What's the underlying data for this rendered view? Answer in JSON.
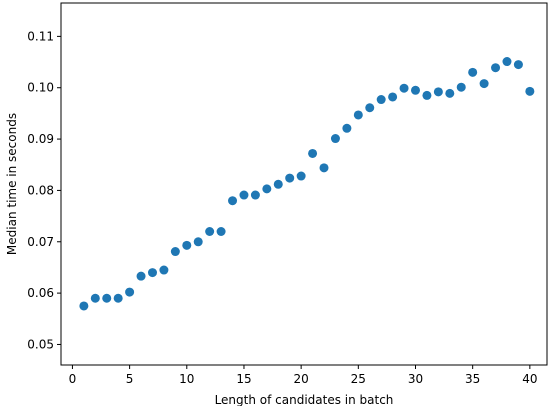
{
  "chart_data": {
    "type": "scatter",
    "title": "",
    "xlabel": "Length of candidates in batch",
    "ylabel": "Median time in seconds",
    "xlim": [
      -1,
      41.5
    ],
    "ylim": [
      0.046,
      0.1165
    ],
    "xticks": [
      0,
      5,
      10,
      15,
      20,
      25,
      30,
      35,
      40
    ],
    "xtick_labels": [
      "0",
      "5",
      "10",
      "15",
      "20",
      "25",
      "30",
      "35",
      "40"
    ],
    "yticks": [
      0.05,
      0.06,
      0.07,
      0.08,
      0.09,
      0.1,
      0.11
    ],
    "ytick_labels": [
      "0.05",
      "0.06",
      "0.07",
      "0.08",
      "0.09",
      "0.10",
      "0.11"
    ],
    "grid": false,
    "marker_color": "#1f77b4",
    "series": [
      {
        "x": [
          1,
          2,
          3,
          4,
          5,
          6,
          7,
          8,
          9,
          10,
          11,
          12,
          13,
          14,
          15,
          16,
          17,
          18,
          19,
          20,
          21,
          22,
          23,
          24,
          25,
          26,
          27,
          28,
          29,
          30,
          31,
          32,
          33,
          34,
          35,
          36,
          37,
          38,
          39,
          40
        ],
        "y": [
          0.0575,
          0.059,
          0.059,
          0.059,
          0.0602,
          0.0633,
          0.064,
          0.0645,
          0.0681,
          0.0693,
          0.07,
          0.072,
          0.072,
          0.078,
          0.0791,
          0.0791,
          0.0803,
          0.0812,
          0.0824,
          0.0828,
          0.0872,
          0.0844,
          0.0901,
          0.0921,
          0.0947,
          0.0961,
          0.0977,
          0.0982,
          0.0999,
          0.0995,
          0.0985,
          0.0992,
          0.0989,
          0.1001,
          0.103,
          0.1008,
          0.1039,
          0.1051,
          0.1045,
          0.0993
        ]
      }
    ]
  }
}
